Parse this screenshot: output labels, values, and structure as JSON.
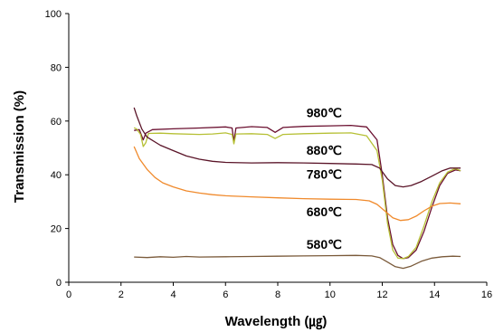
{
  "chart_data": {
    "type": "line",
    "title": "",
    "xlabel": "Wavelength (㎍)",
    "ylabel": "Transmission (%)",
    "xlim": [
      0,
      16
    ],
    "ylim": [
      0,
      100
    ],
    "xticks": [
      0,
      2,
      4,
      6,
      8,
      10,
      12,
      14,
      16
    ],
    "yticks": [
      0,
      20,
      40,
      60,
      80,
      100
    ],
    "grid": false,
    "legend": "none",
    "series": [
      {
        "name": "980℃",
        "color": "#6b1030",
        "label_at": [
          9.1,
          61.5
        ],
        "points": [
          [
            2.5,
            56.5
          ],
          [
            2.7,
            56.8
          ],
          [
            2.85,
            53
          ],
          [
            2.95,
            55.5
          ],
          [
            3.2,
            56.8
          ],
          [
            4,
            57.1
          ],
          [
            5,
            57.4
          ],
          [
            6,
            57.8
          ],
          [
            6.25,
            57.4
          ],
          [
            6.32,
            52.5
          ],
          [
            6.4,
            57.4
          ],
          [
            7,
            57.9
          ],
          [
            7.6,
            57.6
          ],
          [
            7.9,
            55.8
          ],
          [
            8.2,
            57.6
          ],
          [
            9,
            58
          ],
          [
            10,
            58.2
          ],
          [
            10.8,
            58.4
          ],
          [
            11.4,
            57.8
          ],
          [
            11.8,
            53
          ],
          [
            12,
            40
          ],
          [
            12.2,
            24
          ],
          [
            12.4,
            14
          ],
          [
            12.6,
            10
          ],
          [
            12.8,
            8.8
          ],
          [
            13.0,
            9.2
          ],
          [
            13.3,
            12
          ],
          [
            13.6,
            19
          ],
          [
            13.9,
            28
          ],
          [
            14.2,
            36
          ],
          [
            14.5,
            40.5
          ],
          [
            14.8,
            41.8
          ],
          [
            15,
            41.5
          ]
        ]
      },
      {
        "name": "880℃",
        "color": "#b6c035",
        "label_at": [
          9.1,
          47.5
        ],
        "points": [
          [
            2.5,
            57.5
          ],
          [
            2.6,
            57
          ],
          [
            2.75,
            55
          ],
          [
            2.85,
            50.5
          ],
          [
            2.95,
            52
          ],
          [
            3.05,
            55.4
          ],
          [
            3.5,
            55.5
          ],
          [
            4,
            55.3
          ],
          [
            5,
            55
          ],
          [
            5.5,
            55.2
          ],
          [
            6,
            55.6
          ],
          [
            6.25,
            55
          ],
          [
            6.32,
            51.5
          ],
          [
            6.4,
            55.2
          ],
          [
            7,
            55.3
          ],
          [
            7.6,
            55
          ],
          [
            7.9,
            53.5
          ],
          [
            8.2,
            55
          ],
          [
            9,
            55.3
          ],
          [
            10,
            55.5
          ],
          [
            10.8,
            55.6
          ],
          [
            11.4,
            54.5
          ],
          [
            11.8,
            49
          ],
          [
            12,
            38
          ],
          [
            12.2,
            22
          ],
          [
            12.4,
            12
          ],
          [
            12.6,
            9
          ],
          [
            12.8,
            8.8
          ],
          [
            13.0,
            9.6
          ],
          [
            13.3,
            13
          ],
          [
            13.6,
            21
          ],
          [
            13.9,
            30
          ],
          [
            14.2,
            37
          ],
          [
            14.5,
            41
          ],
          [
            14.8,
            42.3
          ],
          [
            15,
            41.5
          ]
        ]
      },
      {
        "name": "780℃",
        "color": "#5a1428",
        "label_at": [
          9.1,
          38.5
        ],
        "points": [
          [
            2.5,
            65
          ],
          [
            2.6,
            62
          ],
          [
            2.8,
            57
          ],
          [
            3,
            54
          ],
          [
            3.5,
            51
          ],
          [
            4,
            49
          ],
          [
            4.5,
            47
          ],
          [
            5,
            45.8
          ],
          [
            5.5,
            45
          ],
          [
            6,
            44.6
          ],
          [
            7,
            44.4
          ],
          [
            8,
            44.5
          ],
          [
            9,
            44.4
          ],
          [
            10,
            44.2
          ],
          [
            11,
            44
          ],
          [
            11.6,
            43.8
          ],
          [
            11.9,
            42.5
          ],
          [
            12.2,
            38.5
          ],
          [
            12.5,
            36
          ],
          [
            12.8,
            35.5
          ],
          [
            13.1,
            36
          ],
          [
            13.5,
            37.5
          ],
          [
            13.9,
            39.5
          ],
          [
            14.3,
            41.5
          ],
          [
            14.6,
            42.5
          ],
          [
            15,
            42.5
          ]
        ]
      },
      {
        "name": "680℃",
        "color": "#f08a2c",
        "label_at": [
          9.1,
          24.5
        ],
        "points": [
          [
            2.5,
            50.5
          ],
          [
            2.7,
            46
          ],
          [
            3,
            42
          ],
          [
            3.3,
            39
          ],
          [
            3.6,
            37
          ],
          [
            4,
            35.5
          ],
          [
            4.5,
            34
          ],
          [
            5,
            33.2
          ],
          [
            5.5,
            32.6
          ],
          [
            6,
            32.2
          ],
          [
            7,
            31.8
          ],
          [
            8,
            31.4
          ],
          [
            9,
            31.1
          ],
          [
            10,
            30.9
          ],
          [
            11,
            30.8
          ],
          [
            11.5,
            30.3
          ],
          [
            11.8,
            29
          ],
          [
            12.1,
            26.5
          ],
          [
            12.4,
            24
          ],
          [
            12.7,
            23
          ],
          [
            13,
            23.3
          ],
          [
            13.3,
            24.6
          ],
          [
            13.6,
            26.6
          ],
          [
            13.9,
            28.3
          ],
          [
            14.2,
            29.3
          ],
          [
            14.6,
            29.5
          ],
          [
            15,
            29.2
          ]
        ]
      },
      {
        "name": "580℃",
        "color": "#7a5a3a",
        "label_at": [
          9.1,
          12.5
        ],
        "points": [
          [
            2.5,
            9.4
          ],
          [
            3,
            9.2
          ],
          [
            3.5,
            9.5
          ],
          [
            4,
            9.3
          ],
          [
            4.5,
            9.6
          ],
          [
            5,
            9.4
          ],
          [
            6,
            9.5
          ],
          [
            7,
            9.6
          ],
          [
            8,
            9.7
          ],
          [
            9,
            9.8
          ],
          [
            10,
            9.9
          ],
          [
            11,
            10
          ],
          [
            11.6,
            9.8
          ],
          [
            11.9,
            9.2
          ],
          [
            12.2,
            7.5
          ],
          [
            12.5,
            5.8
          ],
          [
            12.8,
            5.2
          ],
          [
            13.1,
            6
          ],
          [
            13.5,
            7.8
          ],
          [
            13.9,
            9
          ],
          [
            14.3,
            9.5
          ],
          [
            14.7,
            9.7
          ],
          [
            15,
            9.6
          ]
        ]
      }
    ]
  }
}
